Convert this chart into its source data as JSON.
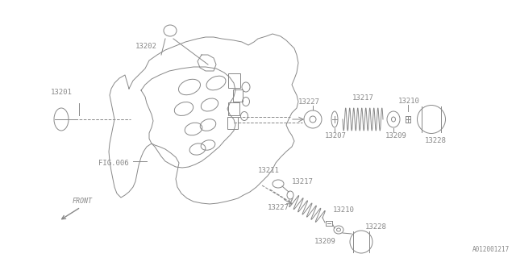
{
  "bg_color": "#ffffff",
  "line_color": "#888888",
  "fig_width": 6.4,
  "fig_height": 3.2,
  "dpi": 100,
  "watermark": "A012001217",
  "block_color": "#aaaaaa"
}
